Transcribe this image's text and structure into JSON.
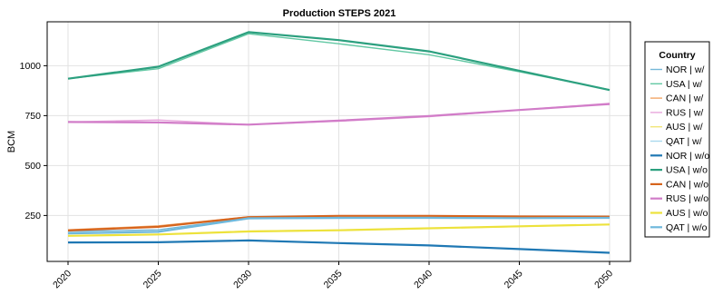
{
  "chart_data": {
    "type": "line",
    "title": "Production STEPS 2021",
    "xlabel": "",
    "ylabel": "BCM",
    "x": [
      2020,
      2025,
      2030,
      2035,
      2040,
      2045,
      2050
    ],
    "xlim": [
      2020,
      2050
    ],
    "ylim": [
      20,
      1220
    ],
    "yticks": [
      250,
      500,
      750,
      1000
    ],
    "grid": true,
    "legend": {
      "title": "Country",
      "placement": "right"
    },
    "series": [
      {
        "name": "NOR | w/",
        "color": "#75b8d8",
        "width": 1.4,
        "values": [
          170,
          178,
          238,
          240,
          240,
          240,
          240
        ]
      },
      {
        "name": "USA | w/",
        "color": "#63c8a4",
        "width": 1.4,
        "values": [
          935,
          985,
          1160,
          1110,
          1055,
          970,
          880
        ]
      },
      {
        "name": "CAN | w/",
        "color": "#f2a768",
        "width": 1.4,
        "values": [
          178,
          198,
          243,
          248,
          248,
          246,
          246
        ]
      },
      {
        "name": "RUS | w/",
        "color": "#e8a6dc",
        "width": 1.4,
        "values": [
          718,
          728,
          705,
          722,
          745,
          778,
          812
        ]
      },
      {
        "name": "AUS | w/",
        "color": "#f1e67a",
        "width": 1.4,
        "values": [
          148,
          155,
          172,
          177,
          185,
          195,
          205
        ]
      },
      {
        "name": "QAT | w/",
        "color": "#a9d8ee",
        "width": 1.4,
        "values": [
          162,
          170,
          234,
          236,
          238,
          238,
          240
        ]
      },
      {
        "name": "NOR | w/o",
        "color": "#1f78b4",
        "width": 2.2,
        "values": [
          115,
          116,
          125,
          112,
          100,
          82,
          63
        ]
      },
      {
        "name": "USA | w/o",
        "color": "#2ca07f",
        "width": 2.2,
        "values": [
          935,
          995,
          1168,
          1128,
          1072,
          975,
          878
        ]
      },
      {
        "name": "CAN | w/o",
        "color": "#d6641d",
        "width": 2.2,
        "values": [
          175,
          193,
          242,
          248,
          248,
          245,
          244
        ]
      },
      {
        "name": "RUS | w/o",
        "color": "#d17cc8",
        "width": 2.2,
        "values": [
          718,
          716,
          705,
          725,
          748,
          778,
          808
        ]
      },
      {
        "name": "AUS | w/o",
        "color": "#ede23c",
        "width": 2.2,
        "values": [
          148,
          155,
          170,
          176,
          186,
          196,
          205
        ]
      },
      {
        "name": "QAT | w/o",
        "color": "#6eb8dc",
        "width": 2.2,
        "values": [
          160,
          168,
          236,
          238,
          238,
          237,
          238
        ]
      }
    ]
  }
}
